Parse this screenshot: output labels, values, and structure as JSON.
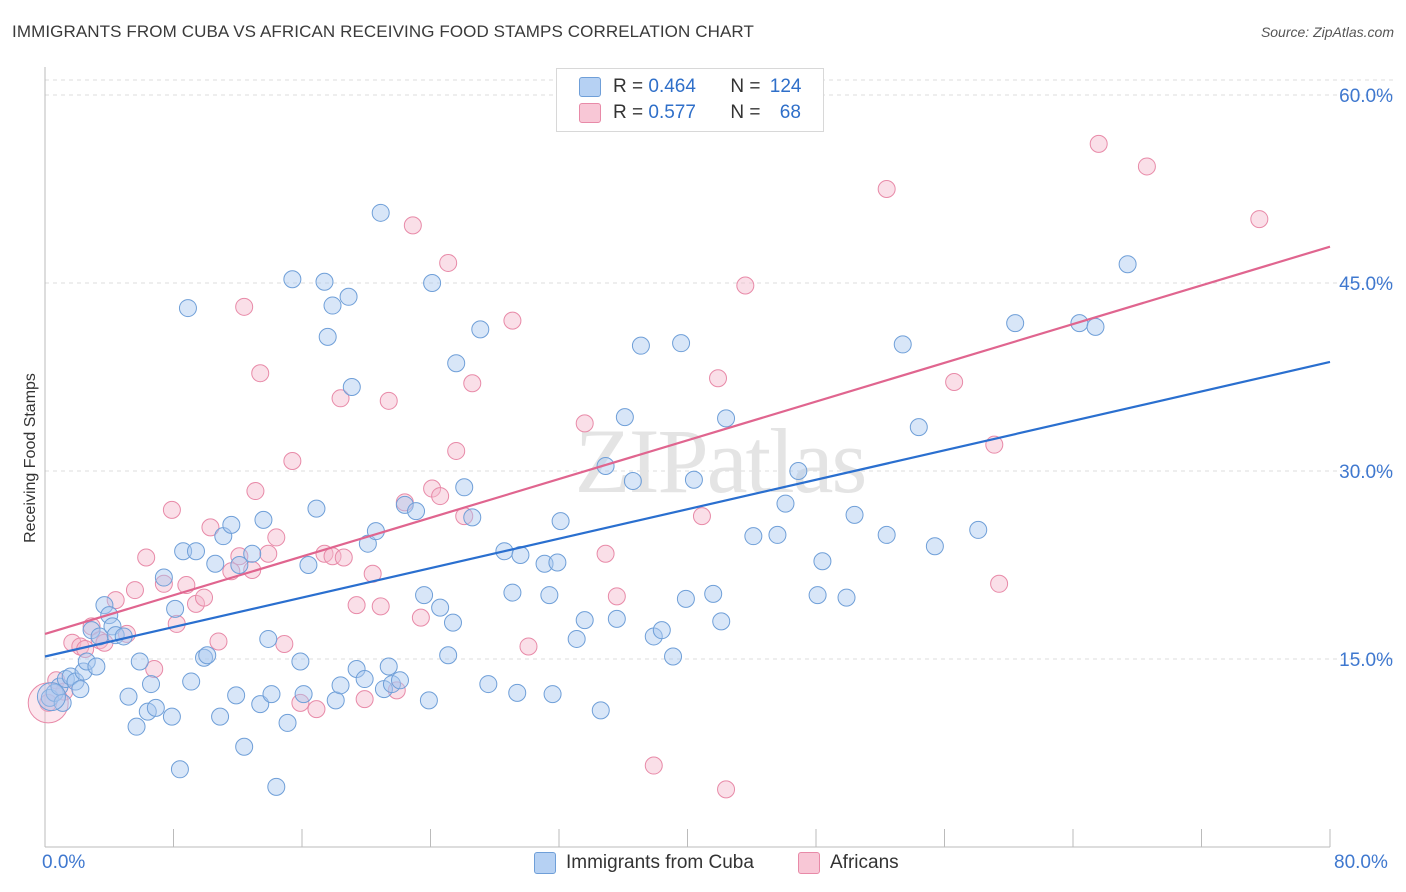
{
  "title": "IMMIGRANTS FROM CUBA VS AFRICAN RECEIVING FOOD STAMPS CORRELATION CHART",
  "source": "Source: ZipAtlas.com",
  "watermark": "ZIPatlas",
  "legend_top": {
    "rows": [
      {
        "r_label": "R = ",
        "r_value": "0.464",
        "n_label": "N = ",
        "n_value": "124"
      },
      {
        "r_label": "R = ",
        "r_value": "0.577",
        "n_label": "N = ",
        "n_value": "68"
      }
    ]
  },
  "colors": {
    "blue_fill": "#a9c8f0",
    "blue_stroke": "#6f9fd8",
    "blue_line": "#2a6fcf",
    "pink_fill": "#f5b8cb",
    "pink_stroke": "#e88aa8",
    "pink_line": "#e0658f",
    "tick_label": "#3f78cf",
    "grid": "#dcdcdc"
  },
  "chart_data": {
    "type": "scatter",
    "title": "IMMIGRANTS FROM CUBA VS AFRICAN RECEIVING FOOD STAMPS CORRELATION CHART",
    "xlabel": "",
    "ylabel": "Receiving Food Stamps",
    "xlim": [
      0,
      80
    ],
    "ylim": [
      0,
      60
    ],
    "x_tick_labels": [
      "0.0%",
      "80.0%"
    ],
    "y_ticks": [
      15,
      30,
      45,
      60
    ],
    "y_tick_labels": [
      "15.0%",
      "30.0%",
      "45.0%",
      "60.0%"
    ],
    "grid": "horizontal dashed",
    "legend_placement": "bottom-center",
    "series": [
      {
        "name": "Immigrants from Cuba",
        "r": 0.464,
        "n": 124,
        "trend": {
          "x": [
            0,
            80
          ],
          "y": [
            15.2,
            38.7
          ]
        },
        "points": [
          [
            0.3,
            11.9
          ],
          [
            0.6,
            12.3
          ],
          [
            0.9,
            12.8
          ],
          [
            1.1,
            11.5
          ],
          [
            1.3,
            13.4
          ],
          [
            1.6,
            13.6
          ],
          [
            1.9,
            13.2
          ],
          [
            2.2,
            12.6
          ],
          [
            2.4,
            14.0
          ],
          [
            2.6,
            14.8
          ],
          [
            2.9,
            17.3
          ],
          [
            3.2,
            14.4
          ],
          [
            3.4,
            16.8
          ],
          [
            3.7,
            19.3
          ],
          [
            4.0,
            18.5
          ],
          [
            4.2,
            17.6
          ],
          [
            4.4,
            16.9
          ],
          [
            4.9,
            16.8
          ],
          [
            5.2,
            12.0
          ],
          [
            5.7,
            9.6
          ],
          [
            5.9,
            14.8
          ],
          [
            6.4,
            10.8
          ],
          [
            6.6,
            13.0
          ],
          [
            6.9,
            11.1
          ],
          [
            7.4,
            21.5
          ],
          [
            7.9,
            10.4
          ],
          [
            8.1,
            19.0
          ],
          [
            8.4,
            6.2
          ],
          [
            8.6,
            23.6
          ],
          [
            8.9,
            43.0
          ],
          [
            9.1,
            13.2
          ],
          [
            9.4,
            23.6
          ],
          [
            9.9,
            15.1
          ],
          [
            10.1,
            15.3
          ],
          [
            10.6,
            22.6
          ],
          [
            10.9,
            10.4
          ],
          [
            11.1,
            24.8
          ],
          [
            11.6,
            25.7
          ],
          [
            11.9,
            12.1
          ],
          [
            12.1,
            22.5
          ],
          [
            12.4,
            8.0
          ],
          [
            12.9,
            23.4
          ],
          [
            13.4,
            11.4
          ],
          [
            13.6,
            26.1
          ],
          [
            13.9,
            16.6
          ],
          [
            14.1,
            12.2
          ],
          [
            14.4,
            4.8
          ],
          [
            15.1,
            9.9
          ],
          [
            15.4,
            45.3
          ],
          [
            15.9,
            14.8
          ],
          [
            16.1,
            12.2
          ],
          [
            16.4,
            22.5
          ],
          [
            16.9,
            27.0
          ],
          [
            17.4,
            45.1
          ],
          [
            17.6,
            40.7
          ],
          [
            17.9,
            43.2
          ],
          [
            18.1,
            11.7
          ],
          [
            18.4,
            12.9
          ],
          [
            18.9,
            43.9
          ],
          [
            19.1,
            36.7
          ],
          [
            19.4,
            14.2
          ],
          [
            19.9,
            13.4
          ],
          [
            20.1,
            24.2
          ],
          [
            20.6,
            25.2
          ],
          [
            20.9,
            50.6
          ],
          [
            21.1,
            12.6
          ],
          [
            21.4,
            14.4
          ],
          [
            21.6,
            13.0
          ],
          [
            22.1,
            13.3
          ],
          [
            22.4,
            27.3
          ],
          [
            23.1,
            26.8
          ],
          [
            23.6,
            20.1
          ],
          [
            23.9,
            11.7
          ],
          [
            24.1,
            45.0
          ],
          [
            24.6,
            19.1
          ],
          [
            25.1,
            15.3
          ],
          [
            25.4,
            17.9
          ],
          [
            25.6,
            38.6
          ],
          [
            26.1,
            28.7
          ],
          [
            26.6,
            26.3
          ],
          [
            27.1,
            41.3
          ],
          [
            27.6,
            13.0
          ],
          [
            28.6,
            23.6
          ],
          [
            29.1,
            20.3
          ],
          [
            29.4,
            12.3
          ],
          [
            29.6,
            23.3
          ],
          [
            31.1,
            22.6
          ],
          [
            31.4,
            20.1
          ],
          [
            31.6,
            12.2
          ],
          [
            31.9,
            22.7
          ],
          [
            32.1,
            26.0
          ],
          [
            33.1,
            16.6
          ],
          [
            33.6,
            18.1
          ],
          [
            34.6,
            10.9
          ],
          [
            34.9,
            30.4
          ],
          [
            35.6,
            18.2
          ],
          [
            36.1,
            34.3
          ],
          [
            36.6,
            29.2
          ],
          [
            37.1,
            40.0
          ],
          [
            37.9,
            16.8
          ],
          [
            38.4,
            17.3
          ],
          [
            39.1,
            15.2
          ],
          [
            39.6,
            40.2
          ],
          [
            39.9,
            19.8
          ],
          [
            40.4,
            29.3
          ],
          [
            41.6,
            20.2
          ],
          [
            42.1,
            18.0
          ],
          [
            42.4,
            34.2
          ],
          [
            44.1,
            24.8
          ],
          [
            45.6,
            24.9
          ],
          [
            46.1,
            27.4
          ],
          [
            46.9,
            30.0
          ],
          [
            48.1,
            20.1
          ],
          [
            48.4,
            22.8
          ],
          [
            49.9,
            19.9
          ],
          [
            50.4,
            26.5
          ],
          [
            52.4,
            24.9
          ],
          [
            53.4,
            40.1
          ],
          [
            54.4,
            33.5
          ],
          [
            55.4,
            24.0
          ],
          [
            58.1,
            25.3
          ],
          [
            60.4,
            41.8
          ],
          [
            64.4,
            41.8
          ],
          [
            65.4,
            41.5
          ],
          [
            67.4,
            46.5
          ]
        ]
      },
      {
        "name": "Africans",
        "r": 0.577,
        "n": 68,
        "trend": {
          "x": [
            0,
            80
          ],
          "y": [
            17.0,
            47.9
          ]
        },
        "points": [
          [
            0.2,
            11.5
          ],
          [
            0.7,
            13.3
          ],
          [
            1.2,
            12.4
          ],
          [
            1.7,
            16.3
          ],
          [
            2.2,
            16.0
          ],
          [
            2.5,
            15.8
          ],
          [
            2.9,
            17.6
          ],
          [
            3.4,
            16.5
          ],
          [
            3.7,
            16.3
          ],
          [
            4.4,
            19.7
          ],
          [
            5.1,
            17.0
          ],
          [
            5.6,
            20.5
          ],
          [
            6.3,
            23.1
          ],
          [
            6.8,
            14.2
          ],
          [
            7.4,
            21.0
          ],
          [
            7.9,
            26.9
          ],
          [
            8.2,
            17.8
          ],
          [
            8.8,
            20.9
          ],
          [
            9.4,
            19.4
          ],
          [
            9.9,
            19.9
          ],
          [
            10.3,
            25.5
          ],
          [
            10.8,
            16.4
          ],
          [
            11.6,
            22.0
          ],
          [
            12.1,
            23.2
          ],
          [
            12.4,
            43.1
          ],
          [
            12.9,
            22.1
          ],
          [
            13.1,
            28.4
          ],
          [
            13.4,
            37.8
          ],
          [
            13.9,
            23.4
          ],
          [
            14.4,
            24.7
          ],
          [
            14.9,
            16.2
          ],
          [
            15.4,
            30.8
          ],
          [
            15.9,
            11.5
          ],
          [
            16.9,
            11.0
          ],
          [
            17.4,
            23.4
          ],
          [
            17.9,
            23.2
          ],
          [
            18.4,
            35.8
          ],
          [
            18.6,
            23.1
          ],
          [
            19.4,
            19.3
          ],
          [
            19.9,
            11.8
          ],
          [
            20.4,
            21.8
          ],
          [
            20.9,
            19.2
          ],
          [
            21.4,
            35.6
          ],
          [
            21.9,
            12.5
          ],
          [
            22.4,
            27.5
          ],
          [
            22.9,
            49.6
          ],
          [
            23.4,
            18.3
          ],
          [
            24.1,
            28.6
          ],
          [
            24.6,
            28.0
          ],
          [
            25.1,
            46.6
          ],
          [
            25.6,
            31.6
          ],
          [
            26.1,
            26.4
          ],
          [
            26.6,
            37.0
          ],
          [
            29.1,
            42.0
          ],
          [
            30.1,
            16.0
          ],
          [
            33.6,
            33.8
          ],
          [
            34.9,
            23.4
          ],
          [
            35.6,
            20.0
          ],
          [
            37.9,
            6.5
          ],
          [
            40.9,
            26.4
          ],
          [
            41.9,
            37.4
          ],
          [
            42.4,
            4.6
          ],
          [
            43.6,
            44.8
          ],
          [
            52.4,
            52.5
          ],
          [
            56.6,
            37.1
          ],
          [
            59.1,
            32.1
          ],
          [
            59.4,
            21.0
          ],
          [
            65.6,
            56.1
          ],
          [
            68.6,
            54.3
          ],
          [
            75.6,
            50.1
          ]
        ]
      }
    ]
  },
  "bottom_legend": {
    "blue_label": "Immigrants from Cuba",
    "pink_label": "Africans"
  }
}
